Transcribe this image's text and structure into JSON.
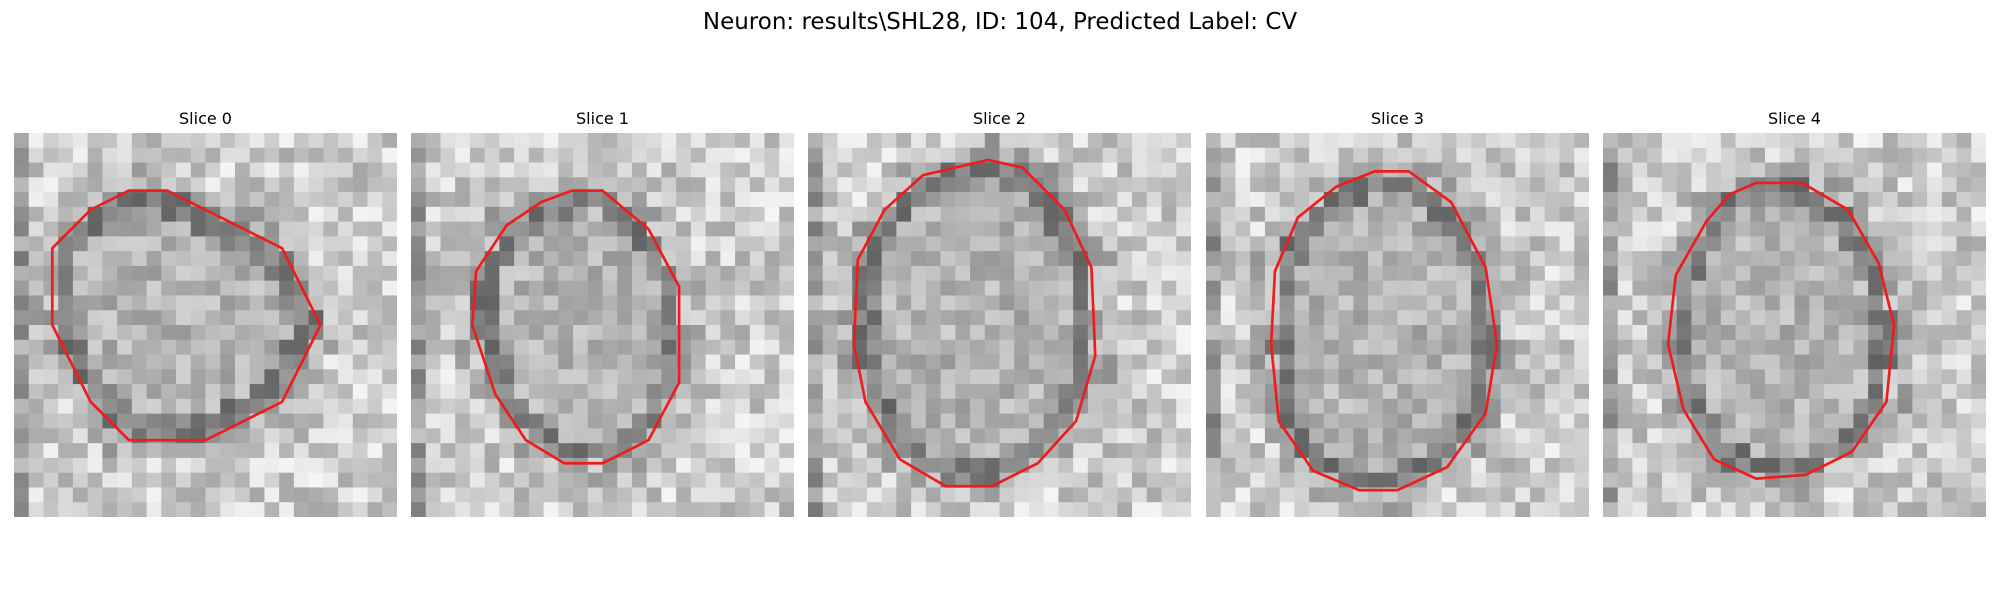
{
  "figure": {
    "suptitle": "Neuron: results\\SHL28, ID: 104, Predicted Label: CV",
    "contour_color": "#ee1c1c"
  },
  "panels": [
    {
      "title": "Slice 0",
      "contour": [
        [
          4,
          1.5
        ],
        [
          7,
          3
        ],
        [
          8,
          5
        ],
        [
          7,
          7
        ],
        [
          5,
          8
        ],
        [
          3,
          8
        ],
        [
          2,
          7
        ],
        [
          1,
          5
        ],
        [
          1,
          3
        ],
        [
          2,
          2
        ],
        [
          3,
          1.5
        ]
      ]
    },
    {
      "title": "Slice 1",
      "contour": [
        [
          4.2,
          1.5
        ],
        [
          5,
          1.5
        ],
        [
          6.2,
          2.5
        ],
        [
          7,
          4
        ],
        [
          7,
          6.5
        ],
        [
          6.2,
          8
        ],
        [
          5,
          8.6
        ],
        [
          4,
          8.6
        ],
        [
          3,
          8
        ],
        [
          2.2,
          6.8
        ],
        [
          1.6,
          5
        ],
        [
          1.7,
          3.6
        ],
        [
          2.5,
          2.4
        ],
        [
          3.4,
          1.8
        ]
      ]
    },
    {
      "title": "Slice 2",
      "contour": [
        [
          4.7,
          0.7
        ],
        [
          5.6,
          0.9
        ],
        [
          6.7,
          2
        ],
        [
          7.4,
          3.5
        ],
        [
          7.5,
          5.8
        ],
        [
          7,
          7.5
        ],
        [
          6,
          8.6
        ],
        [
          4.8,
          9.2
        ],
        [
          3.6,
          9.2
        ],
        [
          2.4,
          8.5
        ],
        [
          1.5,
          7
        ],
        [
          1.2,
          5.5
        ],
        [
          1.3,
          3.3
        ],
        [
          2,
          2
        ],
        [
          3,
          1.1
        ]
      ]
    },
    {
      "title": "Slice 3",
      "contour": [
        [
          4.4,
          1.0
        ],
        [
          5.3,
          1.0
        ],
        [
          6.4,
          1.8
        ],
        [
          7.3,
          3.5
        ],
        [
          7.6,
          5.5
        ],
        [
          7.3,
          7.3
        ],
        [
          6.3,
          8.7
        ],
        [
          5,
          9.3
        ],
        [
          4,
          9.3
        ],
        [
          2.8,
          8.8
        ],
        [
          1.9,
          7.5
        ],
        [
          1.7,
          5.5
        ],
        [
          1.8,
          3.6
        ],
        [
          2.4,
          2.2
        ],
        [
          3.4,
          1.4
        ]
      ]
    },
    {
      "title": "Slice 4",
      "contour": [
        [
          4,
          1.3
        ],
        [
          5.2,
          1.3
        ],
        [
          6.4,
          2
        ],
        [
          7.2,
          3.4
        ],
        [
          7.6,
          5
        ],
        [
          7.4,
          7
        ],
        [
          6.5,
          8.3
        ],
        [
          5.3,
          8.9
        ],
        [
          4,
          9
        ],
        [
          2.9,
          8.5
        ],
        [
          2.1,
          7.2
        ],
        [
          1.7,
          5.5
        ],
        [
          1.9,
          3.7
        ],
        [
          2.7,
          2.3
        ],
        [
          3.3,
          1.6
        ]
      ]
    }
  ]
}
